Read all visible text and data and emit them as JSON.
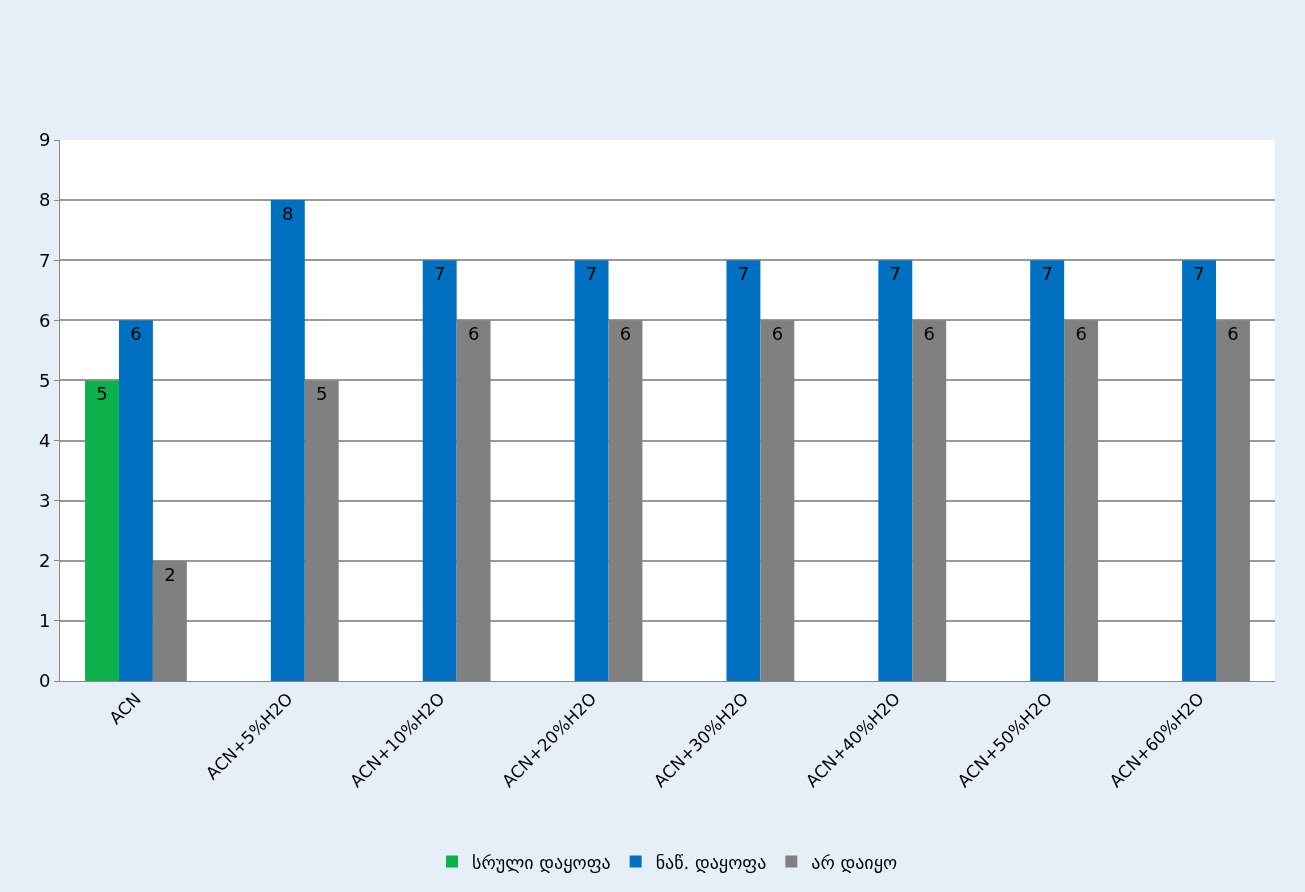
{
  "chart_data": {
    "type": "bar",
    "categories": [
      "ACN",
      "ACN+5%H2O",
      "ACN+10%H2O",
      "ACN+20%H2O",
      "ACN+30%H2O",
      "ACN+40%H2O",
      "ACN+50%H2O",
      "ACN+60%H2O"
    ],
    "series": [
      {
        "name": "სრული დაყოფა",
        "color": "#0cb14b",
        "values": [
          5,
          null,
          null,
          null,
          null,
          null,
          null,
          null
        ]
      },
      {
        "name": "ნაწ. დაყოფა",
        "color": "#0070c0",
        "values": [
          6,
          8,
          7,
          7,
          7,
          7,
          7,
          7
        ]
      },
      {
        "name": "არ დაიყო",
        "color": "#808080",
        "values": [
          2,
          5,
          6,
          6,
          6,
          6,
          6,
          6
        ]
      }
    ],
    "ylim": [
      0,
      9
    ],
    "yticks": [
      0,
      1,
      2,
      3,
      4,
      5,
      6,
      7,
      8,
      9
    ],
    "grid": "y",
    "legend": "bottom",
    "data_labels": true
  }
}
